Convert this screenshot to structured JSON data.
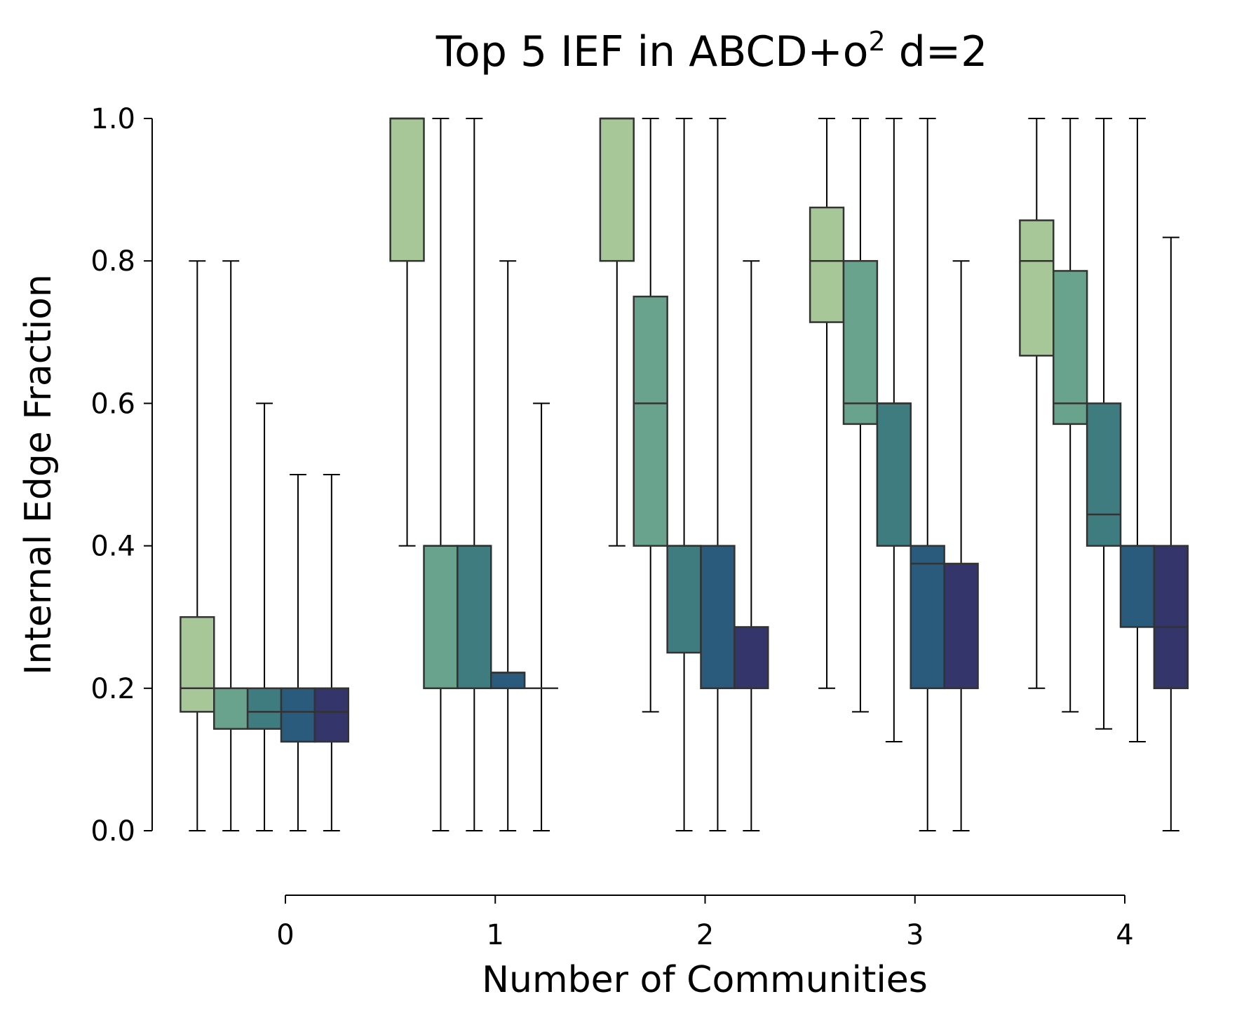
{
  "chart_data": {
    "type": "box",
    "title": "Top 5 IEF in ABCD+o",
    "title_superscript": "2",
    "title_suffix": " d=2",
    "xlabel": "Number of Communities",
    "ylabel": "Internal Edge Fraction",
    "ylim": [
      0.0,
      1.0
    ],
    "xlim": [
      -0.5,
      4.5
    ],
    "yticks": [
      0.0,
      0.2,
      0.4,
      0.6,
      0.8,
      1.0
    ],
    "ytick_labels": [
      "0.0",
      "0.2",
      "0.4",
      "0.6",
      "0.8",
      "1.0"
    ],
    "xticks": [
      0,
      1,
      2,
      3,
      4
    ],
    "xtick_labels": [
      "0",
      "1",
      "2",
      "3",
      "4"
    ],
    "grid": false,
    "legend": false,
    "style": "seaborn despined, offset axes",
    "rank_colors": [
      "#a7c799",
      "#6aa38d",
      "#3f7c80",
      "#2a5a7c",
      "#34356a"
    ],
    "groups": [
      {
        "x": -0.5,
        "boxes": [
          {
            "rank": 1,
            "whislo": 0.0,
            "q1": 0.167,
            "med": 0.2,
            "q3": 0.3,
            "whishi": 0.8
          },
          {
            "rank": 2,
            "whislo": 0.0,
            "q1": 0.143,
            "med": 0.2,
            "q3": 0.2,
            "whishi": 0.8
          },
          {
            "rank": 3,
            "whislo": 0.0,
            "q1": 0.143,
            "med": 0.167,
            "q3": 0.2,
            "whishi": 0.6
          },
          {
            "rank": 4,
            "whislo": 0.0,
            "q1": 0.125,
            "med": 0.167,
            "q3": 0.2,
            "whishi": 0.5
          },
          {
            "rank": 5,
            "whislo": 0.0,
            "q1": 0.125,
            "med": 0.167,
            "q3": 0.2,
            "whishi": 0.5
          }
        ]
      },
      {
        "x": 0.5,
        "boxes": [
          {
            "rank": 1,
            "whislo": 0.4,
            "q1": 0.8,
            "med": 1.0,
            "q3": 1.0,
            "whishi": 1.0
          },
          {
            "rank": 2,
            "whislo": 0.0,
            "q1": 0.2,
            "med": 0.4,
            "q3": 0.4,
            "whishi": 1.0
          },
          {
            "rank": 3,
            "whislo": 0.0,
            "q1": 0.2,
            "med": 0.4,
            "q3": 0.4,
            "whishi": 1.0
          },
          {
            "rank": 4,
            "whislo": 0.0,
            "q1": 0.2,
            "med": 0.222,
            "q3": 0.222,
            "whishi": 0.8
          },
          {
            "rank": 5,
            "whislo": 0.0,
            "q1": 0.2,
            "med": 0.2,
            "q3": 0.2,
            "whishi": 0.6
          }
        ]
      },
      {
        "x": 1.5,
        "boxes": [
          {
            "rank": 1,
            "whislo": 0.4,
            "q1": 0.8,
            "med": 1.0,
            "q3": 1.0,
            "whishi": 1.0
          },
          {
            "rank": 2,
            "whislo": 0.167,
            "q1": 0.4,
            "med": 0.6,
            "q3": 0.75,
            "whishi": 1.0
          },
          {
            "rank": 3,
            "whislo": 0.0,
            "q1": 0.25,
            "med": 0.4,
            "q3": 0.4,
            "whishi": 1.0
          },
          {
            "rank": 4,
            "whislo": 0.0,
            "q1": 0.2,
            "med": 0.2,
            "q3": 0.4,
            "whishi": 1.0
          },
          {
            "rank": 5,
            "whislo": 0.0,
            "q1": 0.2,
            "med": 0.2,
            "q3": 0.286,
            "whishi": 0.8
          }
        ]
      },
      {
        "x": 2.5,
        "boxes": [
          {
            "rank": 1,
            "whislo": 0.2,
            "q1": 0.714,
            "med": 0.8,
            "q3": 0.875,
            "whishi": 1.0
          },
          {
            "rank": 2,
            "whislo": 0.167,
            "q1": 0.571,
            "med": 0.6,
            "q3": 0.8,
            "whishi": 1.0
          },
          {
            "rank": 3,
            "whislo": 0.125,
            "q1": 0.4,
            "med": 0.6,
            "q3": 0.6,
            "whishi": 1.0
          },
          {
            "rank": 4,
            "whislo": 0.0,
            "q1": 0.2,
            "med": 0.375,
            "q3": 0.4,
            "whishi": 1.0
          },
          {
            "rank": 5,
            "whislo": 0.0,
            "q1": 0.2,
            "med": 0.2,
            "q3": 0.375,
            "whishi": 0.8
          }
        ]
      },
      {
        "x": 3.5,
        "boxes": [
          {
            "rank": 1,
            "whislo": 0.2,
            "q1": 0.667,
            "med": 0.8,
            "q3": 0.857,
            "whishi": 1.0
          },
          {
            "rank": 2,
            "whislo": 0.167,
            "q1": 0.571,
            "med": 0.6,
            "q3": 0.786,
            "whishi": 1.0
          },
          {
            "rank": 3,
            "whislo": 0.143,
            "q1": 0.4,
            "med": 0.444,
            "q3": 0.6,
            "whishi": 1.0
          },
          {
            "rank": 4,
            "whislo": 0.125,
            "q1": 0.286,
            "med": 0.4,
            "q3": 0.4,
            "whishi": 1.0
          },
          {
            "rank": 5,
            "whislo": 0.0,
            "q1": 0.2,
            "med": 0.286,
            "q3": 0.4,
            "whishi": 0.833
          }
        ]
      }
    ]
  }
}
